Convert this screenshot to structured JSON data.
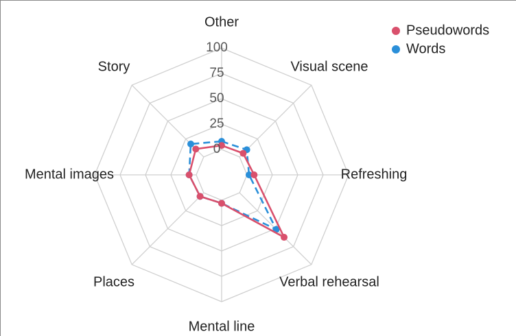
{
  "chart_data": {
    "type": "radar",
    "categories": [
      "Other",
      "Visual scene",
      "Refreshing",
      "Verbal rehearsal",
      "Mental line",
      "Places",
      "Mental images",
      "Story"
    ],
    "series": [
      {
        "name": "Pseudowords",
        "color": "#d9506c",
        "values": [
          4,
          5,
          7,
          62,
          3,
          5,
          7,
          11
        ]
      },
      {
        "name": "Words",
        "color": "#2a8fd9",
        "values": [
          8,
          10,
          2,
          51,
          3,
          5,
          7,
          18
        ]
      }
    ],
    "ylim": [
      0,
      100
    ],
    "yticks": [
      0,
      25,
      50,
      75,
      100
    ],
    "grid": true,
    "legend": "top-right"
  }
}
